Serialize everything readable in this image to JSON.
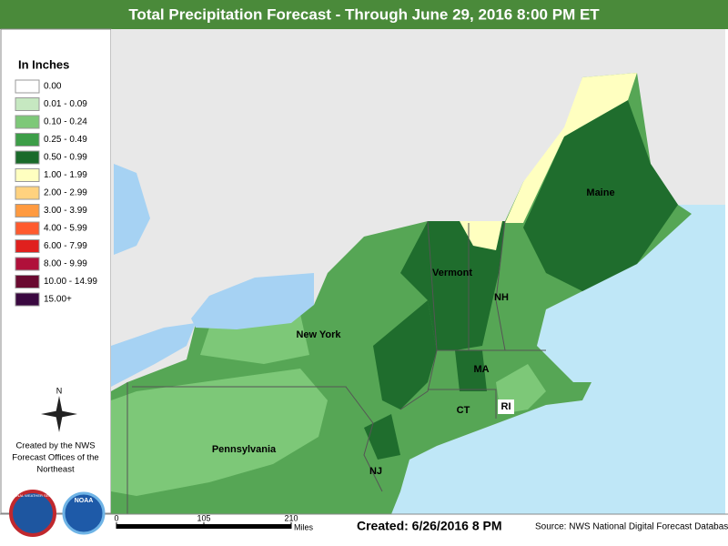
{
  "header": {
    "title": "Total Precipitation Forecast - Through June 29, 2016 8:00 PM ET"
  },
  "legend": {
    "title": "In Inches",
    "items": [
      {
        "label": "0.00",
        "color": "#ffffff"
      },
      {
        "label": "0.01 - 0.09",
        "color": "#c6e8c1"
      },
      {
        "label": "0.10 - 0.24",
        "color": "#7dc878"
      },
      {
        "label": "0.25 - 0.49",
        "color": "#3d9e48"
      },
      {
        "label": "0.50 - 0.99",
        "color": "#1a6a2a"
      },
      {
        "label": "1.00 - 1.99",
        "color": "#ffffc0"
      },
      {
        "label": "2.00 - 2.99",
        "color": "#ffd27f"
      },
      {
        "label": "3.00 - 3.99",
        "color": "#ff9a40"
      },
      {
        "label": "4.00 - 5.99",
        "color": "#ff5a2e"
      },
      {
        "label": "6.00 - 7.99",
        "color": "#e0201e"
      },
      {
        "label": "8.00 - 9.99",
        "color": "#b0103a"
      },
      {
        "label": "10.00 - 14.99",
        "color": "#6a0a30"
      },
      {
        "label": "15.00+",
        "color": "#3a0840"
      }
    ]
  },
  "compass": "N",
  "credits": {
    "lines": [
      "Created by the NWS",
      "Forecast Offices of the",
      "Northeast"
    ]
  },
  "logos": [
    "NATIONAL WEATHER SERVICE",
    "NOAA"
  ],
  "map": {
    "labels": [
      "Maine",
      "Vermont",
      "NH",
      "New York",
      "MA",
      "CT",
      "RI",
      "Pennsylvania",
      "NJ"
    ]
  },
  "scale": {
    "ticks": [
      0,
      105,
      210
    ],
    "unit": "Miles"
  },
  "footer": {
    "created": "Created: 6/26/2016 8 PM",
    "source": "Source: NWS National Digital Forecast Database"
  }
}
